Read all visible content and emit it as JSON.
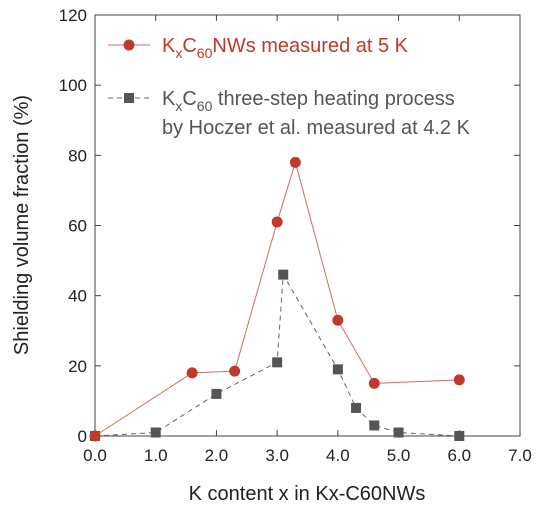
{
  "chart_data": {
    "type": "line",
    "xlabel": "K content x in Kx-C60NWs",
    "ylabel": "Shielding volume fraction (%)",
    "xlim": [
      0.0,
      7.0
    ],
    "ylim": [
      0,
      120
    ],
    "xticks": [
      0,
      1,
      2,
      3,
      4,
      5,
      6,
      7
    ],
    "xtick_labels": [
      "0.0",
      "1.0",
      "2.0",
      "3.0",
      "4.0",
      "5.0",
      "6.0",
      "7.0"
    ],
    "yticks": [
      0,
      20,
      40,
      60,
      80,
      100,
      120
    ],
    "ytick_labels": [
      "0",
      "20",
      "40",
      "60",
      "80",
      "100",
      "120"
    ],
    "grid": false,
    "legend_position": "top-left",
    "series": [
      {
        "name": "KxC60NWs measured at 5 K",
        "legend": {
          "parts": [
            {
              "text": "K",
              "role": "base"
            },
            {
              "text": "x",
              "role": "sub"
            },
            {
              "text": "C",
              "role": "base"
            },
            {
              "text": "60",
              "role": "sub"
            },
            {
              "text": "NWs measured at 5 K",
              "role": "base"
            }
          ]
        },
        "color": "#c0392b",
        "line_color": "#d46a5f",
        "marker": "circle",
        "line_style": "solid",
        "x": [
          0.0,
          1.6,
          2.3,
          3.0,
          3.3,
          4.0,
          4.6,
          6.0
        ],
        "y": [
          0,
          18,
          18.5,
          61,
          78,
          33,
          15,
          16
        ]
      },
      {
        "name": "KxC60 three-step heating process by Hoczer et al. measured at 4.2 K",
        "legend": {
          "parts": [
            {
              "text": "K",
              "role": "base"
            },
            {
              "text": "x",
              "role": "sub"
            },
            {
              "text": "C",
              "role": "base"
            },
            {
              "text": "60",
              "role": "sub"
            },
            {
              "text": " three-step heating process",
              "role": "base"
            }
          ],
          "line2": "by Hoczer et al. measured at 4.2 K"
        },
        "color": "#555555",
        "line_color": "#666666",
        "marker": "square",
        "line_style": "dashed",
        "x": [
          0.0,
          1.0,
          2.0,
          3.0,
          3.1,
          4.0,
          4.3,
          4.6,
          5.0,
          6.0
        ],
        "y": [
          0,
          1,
          12,
          21,
          46,
          19,
          8,
          3,
          1,
          0
        ]
      }
    ]
  }
}
